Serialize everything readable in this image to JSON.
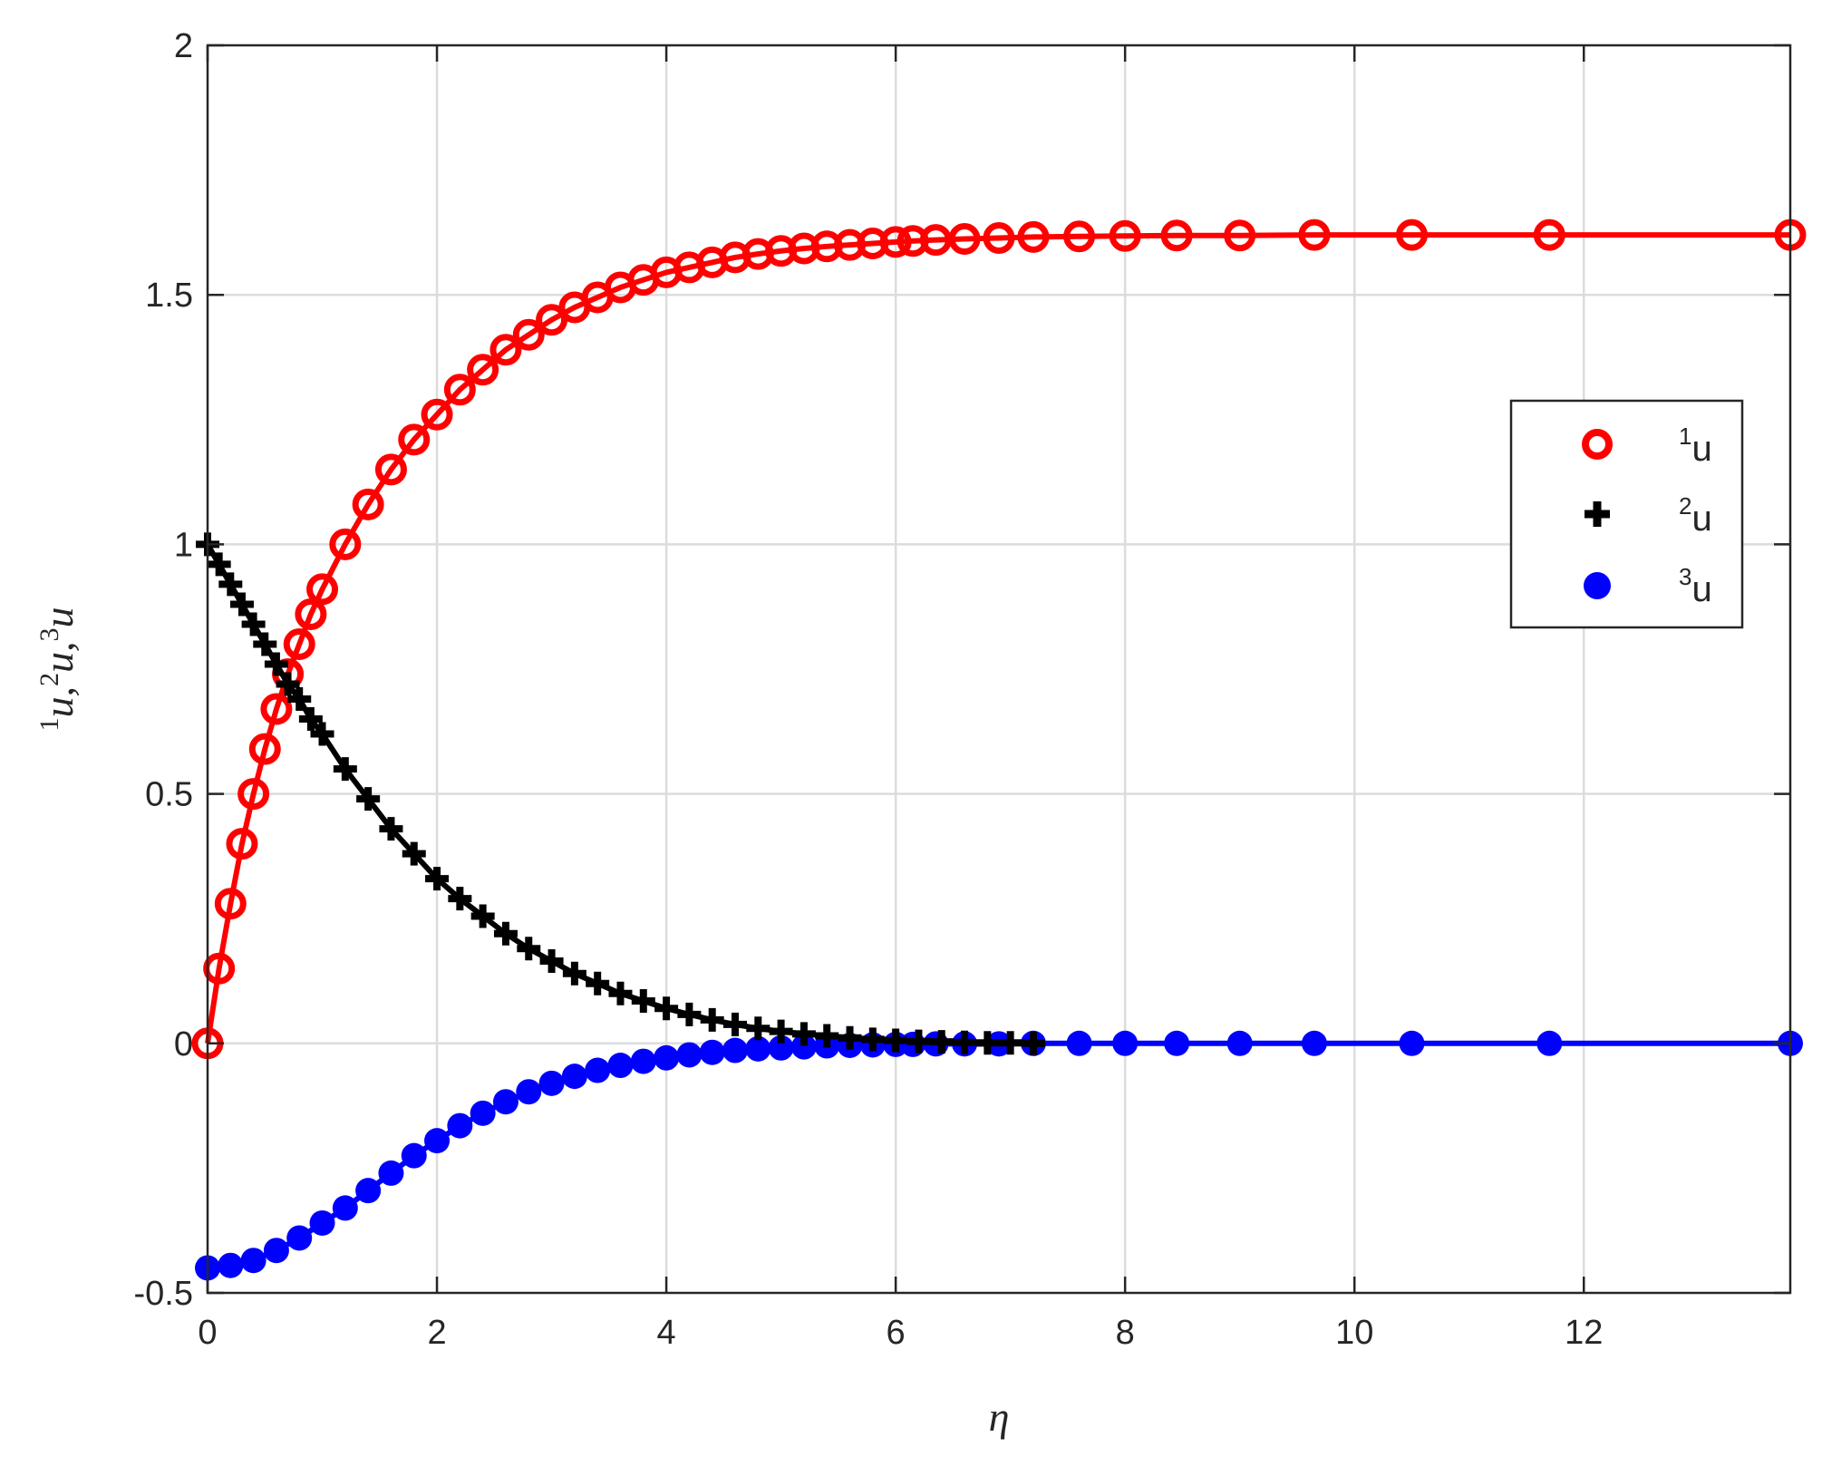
{
  "chart_data": {
    "type": "line",
    "title": "",
    "xlabel": "η",
    "ylabel": {
      "parts": [
        {
          "sup": "1",
          "base": "u,"
        },
        {
          "sup": "2",
          "base": "u,"
        },
        {
          "sup": "3",
          "base": "u"
        }
      ]
    },
    "xlim": [
      0,
      13.8
    ],
    "ylim": [
      -0.5,
      2
    ],
    "xticks": [
      0,
      2,
      4,
      6,
      8,
      10,
      12
    ],
    "xtick_labels": [
      "0",
      "2",
      "4",
      "6",
      "8",
      "10",
      "12"
    ],
    "yticks": [
      -0.5,
      0,
      0.5,
      1,
      1.5,
      2
    ],
    "ytick_labels": [
      "-0.5",
      "0",
      "0.5",
      "1",
      "1.5",
      "2"
    ],
    "grid": true,
    "legend_position": "right",
    "series": [
      {
        "name": "u",
        "name_sup": "1",
        "color": "#ff0000",
        "marker": "open-circle",
        "x": [
          0,
          0.1,
          0.2,
          0.3,
          0.4,
          0.5,
          0.6,
          0.7,
          0.8,
          0.9,
          1.0,
          1.2,
          1.4,
          1.6,
          1.8,
          2.0,
          2.2,
          2.4,
          2.6,
          2.8,
          3.0,
          3.2,
          3.4,
          3.6,
          3.8,
          4.0,
          4.2,
          4.4,
          4.6,
          4.8,
          5.0,
          5.2,
          5.4,
          5.6,
          5.8,
          6.0,
          6.15,
          6.35,
          6.6,
          6.9,
          7.2,
          7.6,
          8.0,
          8.45,
          9.0,
          9.65,
          10.5,
          11.7,
          13.8
        ],
        "y": [
          0,
          0.15,
          0.28,
          0.4,
          0.5,
          0.59,
          0.67,
          0.74,
          0.8,
          0.86,
          0.91,
          1.0,
          1.08,
          1.15,
          1.21,
          1.26,
          1.31,
          1.35,
          1.39,
          1.42,
          1.45,
          1.475,
          1.495,
          1.515,
          1.53,
          1.545,
          1.555,
          1.565,
          1.575,
          1.582,
          1.588,
          1.593,
          1.597,
          1.6,
          1.603,
          1.606,
          1.608,
          1.61,
          1.612,
          1.614,
          1.616,
          1.617,
          1.618,
          1.619,
          1.619,
          1.62,
          1.62,
          1.62,
          1.62
        ]
      },
      {
        "name": "u",
        "name_sup": "2",
        "color": "#000000",
        "marker": "plus",
        "x": [
          0,
          0.1,
          0.2,
          0.3,
          0.4,
          0.5,
          0.6,
          0.7,
          0.8,
          0.9,
          1.0,
          1.2,
          1.4,
          1.6,
          1.8,
          2.0,
          2.2,
          2.4,
          2.6,
          2.8,
          3.0,
          3.2,
          3.4,
          3.6,
          3.8,
          4.0,
          4.2,
          4.4,
          4.6,
          4.8,
          5.0,
          5.2,
          5.4,
          5.6,
          5.8,
          6.0,
          6.2,
          6.4,
          6.6,
          6.8,
          7.0,
          7.2
        ],
        "y": [
          1.0,
          0.96,
          0.92,
          0.88,
          0.84,
          0.8,
          0.76,
          0.72,
          0.69,
          0.65,
          0.62,
          0.55,
          0.49,
          0.43,
          0.38,
          0.33,
          0.29,
          0.255,
          0.22,
          0.19,
          0.165,
          0.14,
          0.12,
          0.1,
          0.085,
          0.07,
          0.058,
          0.047,
          0.038,
          0.03,
          0.024,
          0.019,
          0.015,
          0.011,
          0.008,
          0.006,
          0.004,
          0.003,
          0.002,
          0.001,
          0.001,
          0.0
        ]
      },
      {
        "name": "u",
        "name_sup": "3",
        "color": "#0000ff",
        "marker": "filled-circle",
        "x": [
          0,
          0.2,
          0.4,
          0.6,
          0.8,
          1.0,
          1.2,
          1.4,
          1.6,
          1.8,
          2.0,
          2.2,
          2.4,
          2.6,
          2.8,
          3.0,
          3.2,
          3.4,
          3.6,
          3.8,
          4.0,
          4.2,
          4.4,
          4.6,
          4.8,
          5.0,
          5.2,
          5.4,
          5.6,
          5.8,
          6.0,
          6.15,
          6.35,
          6.6,
          6.9,
          7.2,
          7.6,
          8.0,
          8.45,
          9.0,
          9.65,
          10.5,
          11.7,
          13.8
        ],
        "y": [
          -0.45,
          -0.445,
          -0.435,
          -0.415,
          -0.39,
          -0.36,
          -0.33,
          -0.295,
          -0.26,
          -0.225,
          -0.195,
          -0.165,
          -0.14,
          -0.117,
          -0.097,
          -0.08,
          -0.066,
          -0.054,
          -0.044,
          -0.036,
          -0.029,
          -0.023,
          -0.018,
          -0.014,
          -0.011,
          -0.009,
          -0.007,
          -0.005,
          -0.004,
          -0.003,
          -0.002,
          -0.002,
          -0.001,
          -0.001,
          -0.001,
          0,
          0,
          0,
          0,
          0,
          0,
          0,
          0,
          0
        ]
      }
    ]
  }
}
